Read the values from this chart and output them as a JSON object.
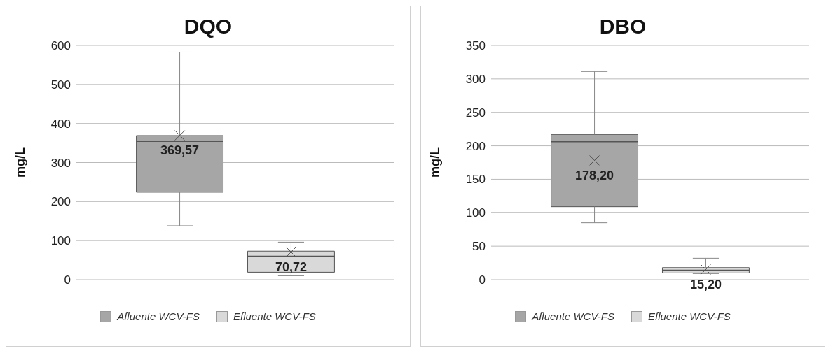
{
  "chart_data": [
    {
      "type": "box",
      "title": "DQO",
      "ylabel": "mg/L",
      "categories": [
        null
      ],
      "ylim": [
        0,
        600
      ],
      "yticks": [
        0,
        100,
        200,
        300,
        400,
        500,
        600
      ],
      "grid": "y",
      "legend": "bottom",
      "series": [
        {
          "name": "Afluente WCV-FS",
          "color": "#a6a6a6",
          "boxes": [
            {
              "low": 138,
              "q1": 224,
              "median": 354,
              "q3": 369,
              "high": 583,
              "mean": 369.57
            }
          ],
          "value_labels": [
            "369,57"
          ]
        },
        {
          "name": "Efluente WCV-FS",
          "color": "#d9d9d9",
          "boxes": [
            {
              "low": 10,
              "q1": 19,
              "median": 60,
              "q3": 73,
              "high": 96,
              "mean": 70.72
            }
          ],
          "value_labels": [
            "70,72"
          ]
        }
      ]
    },
    {
      "type": "box",
      "title": "DBO",
      "ylabel": "mg/L",
      "categories": [
        null
      ],
      "ylim": [
        0,
        350
      ],
      "yticks": [
        0,
        50,
        100,
        150,
        200,
        250,
        300,
        350
      ],
      "grid": "y",
      "legend": "bottom",
      "series": [
        {
          "name": "Afluente WCV-FS",
          "color": "#a6a6a6",
          "boxes": [
            {
              "low": 85,
              "q1": 109,
              "median": 206,
              "q3": 217,
              "high": 311,
              "mean": 178.2
            }
          ],
          "value_labels": [
            "178,20"
          ]
        },
        {
          "name": "Efluente WCV-FS",
          "color": "#d9d9d9",
          "boxes": [
            {
              "low": 9,
              "q1": 10,
              "median": 14,
              "q3": 18,
              "high": 32,
              "mean": 15.2
            }
          ],
          "value_labels": [
            "15,20"
          ]
        }
      ]
    }
  ]
}
